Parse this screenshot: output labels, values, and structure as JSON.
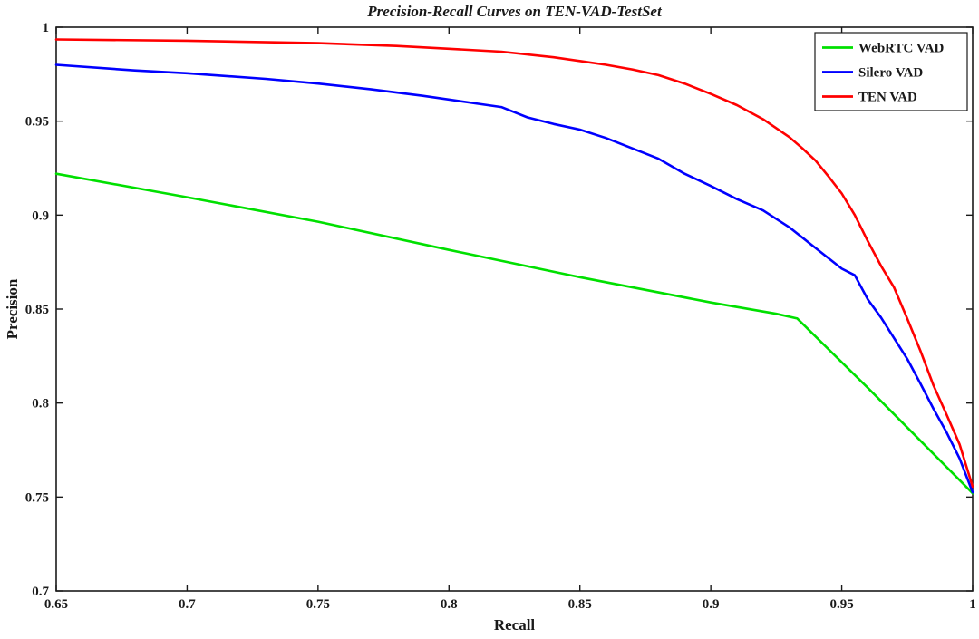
{
  "chart_data": {
    "type": "line",
    "title": "Precision-Recall Curves on TEN-VAD-TestSet",
    "xlabel": "Recall",
    "ylabel": "Precision",
    "xlim": [
      0.65,
      1.0
    ],
    "ylim": [
      0.7,
      1.0
    ],
    "xticks": [
      "0.65",
      "0.7",
      "0.75",
      "0.8",
      "0.85",
      "0.9",
      "0.95",
      "1"
    ],
    "yticks": [
      "0.7",
      "0.75",
      "0.8",
      "0.85",
      "0.9",
      "0.95",
      "1"
    ],
    "grid": false,
    "legend_position": "top-right",
    "axis_color": "#1a1a1a",
    "series": [
      {
        "name": "WebRTC VAD",
        "color": "#00e000",
        "points": [
          [
            0.65,
            0.922
          ],
          [
            0.7,
            0.9095
          ],
          [
            0.75,
            0.8965
          ],
          [
            0.8,
            0.8815
          ],
          [
            0.85,
            0.867
          ],
          [
            0.9,
            0.8535
          ],
          [
            0.925,
            0.8475
          ],
          [
            0.933,
            0.845
          ],
          [
            0.96,
            0.808
          ],
          [
            0.98,
            0.78
          ],
          [
            1.0,
            0.752
          ]
        ]
      },
      {
        "name": "Silero VAD",
        "color": "#0000ff",
        "points": [
          [
            0.65,
            0.98
          ],
          [
            0.68,
            0.977
          ],
          [
            0.7,
            0.9755
          ],
          [
            0.73,
            0.9725
          ],
          [
            0.75,
            0.97
          ],
          [
            0.77,
            0.967
          ],
          [
            0.79,
            0.9635
          ],
          [
            0.81,
            0.9595
          ],
          [
            0.82,
            0.9575
          ],
          [
            0.83,
            0.952
          ],
          [
            0.84,
            0.9485
          ],
          [
            0.85,
            0.9455
          ],
          [
            0.86,
            0.941
          ],
          [
            0.87,
            0.9355
          ],
          [
            0.88,
            0.93
          ],
          [
            0.89,
            0.922
          ],
          [
            0.9,
            0.9155
          ],
          [
            0.91,
            0.9085
          ],
          [
            0.92,
            0.9025
          ],
          [
            0.93,
            0.8935
          ],
          [
            0.94,
            0.8825
          ],
          [
            0.95,
            0.8715
          ],
          [
            0.955,
            0.868
          ],
          [
            0.96,
            0.855
          ],
          [
            0.965,
            0.8455
          ],
          [
            0.97,
            0.8345
          ],
          [
            0.975,
            0.8235
          ],
          [
            0.98,
            0.8105
          ],
          [
            0.985,
            0.797
          ],
          [
            0.99,
            0.7845
          ],
          [
            0.995,
            0.7705
          ],
          [
            1.0,
            0.7525
          ]
        ]
      },
      {
        "name": "TEN VAD",
        "color": "#ff0000",
        "points": [
          [
            0.65,
            0.9935
          ],
          [
            0.7,
            0.9928
          ],
          [
            0.75,
            0.9915
          ],
          [
            0.78,
            0.99
          ],
          [
            0.8,
            0.9885
          ],
          [
            0.82,
            0.987
          ],
          [
            0.84,
            0.984
          ],
          [
            0.85,
            0.982
          ],
          [
            0.86,
            0.98
          ],
          [
            0.87,
            0.9775
          ],
          [
            0.88,
            0.9745
          ],
          [
            0.89,
            0.97
          ],
          [
            0.9,
            0.9645
          ],
          [
            0.91,
            0.9585
          ],
          [
            0.92,
            0.951
          ],
          [
            0.93,
            0.9415
          ],
          [
            0.935,
            0.9355
          ],
          [
            0.94,
            0.929
          ],
          [
            0.945,
            0.9205
          ],
          [
            0.95,
            0.9115
          ],
          [
            0.955,
            0.9
          ],
          [
            0.96,
            0.886
          ],
          [
            0.965,
            0.873
          ],
          [
            0.97,
            0.8615
          ],
          [
            0.975,
            0.845
          ],
          [
            0.98,
            0.828
          ],
          [
            0.985,
            0.8095
          ],
          [
            0.99,
            0.794
          ],
          [
            0.995,
            0.778
          ],
          [
            1.0,
            0.7555
          ]
        ]
      }
    ]
  }
}
